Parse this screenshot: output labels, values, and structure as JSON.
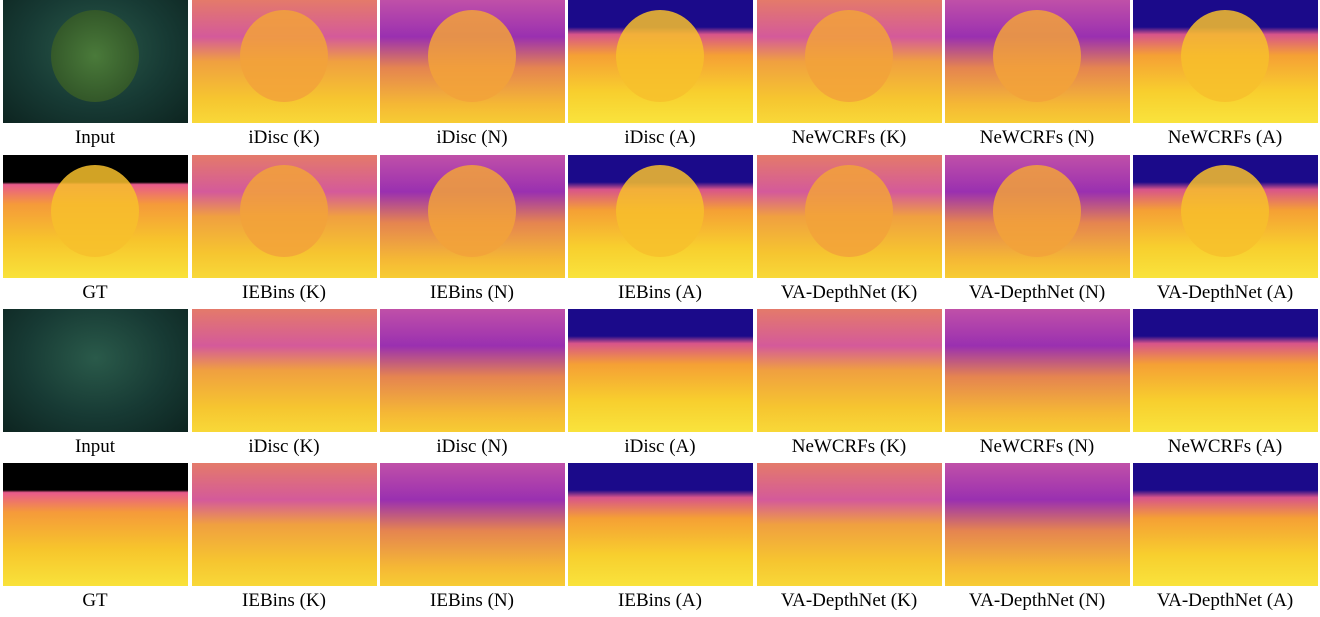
{
  "rows": [
    {
      "captions": [
        "Input",
        "iDisc (K)",
        "iDisc (N)",
        "iDisc (A)",
        "NeWCRFs (K)",
        "NeWCRFs (N)",
        "NeWCRFs (A)"
      ]
    },
    {
      "captions": [
        "GT",
        "IEBins (K)",
        "IEBins (N)",
        "IEBins (A)",
        "VA-DepthNet (K)",
        "VA-DepthNet (N)",
        "VA-DepthNet (A)"
      ]
    },
    {
      "captions": [
        "Input",
        "iDisc (K)",
        "iDisc (N)",
        "iDisc (A)",
        "NeWCRFs (K)",
        "NeWCRFs (N)",
        "NeWCRFs (A)"
      ]
    },
    {
      "captions": [
        "GT",
        "IEBins (K)",
        "IEBins (N)",
        "IEBins (A)",
        "VA-DepthNet (K)",
        "VA-DepthNet (N)",
        "VA-DepthNet (A)"
      ]
    }
  ]
}
